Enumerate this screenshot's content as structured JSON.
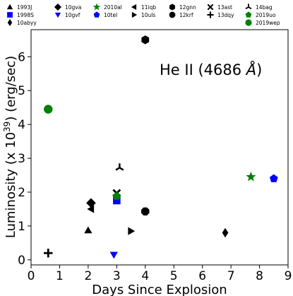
{
  "chart_data": {
    "type": "scatter",
    "xlabel": "Days Since Explosion",
    "ylabel_parts": [
      "Luminosity (x 10",
      "39",
      ") (erg/sec)"
    ],
    "annotation_parts": [
      "He II (4686 ",
      "Å",
      ")"
    ],
    "xlim": [
      0,
      9
    ],
    "ylim": [
      -0.15,
      6.8
    ],
    "xticks": [
      "0",
      "1",
      "2",
      "3",
      "4",
      "5",
      "6",
      "7",
      "8",
      "9"
    ],
    "yticks": [
      "0",
      "1",
      "2",
      "3",
      "4",
      "5",
      "6"
    ],
    "series": [
      {
        "name": "1993J",
        "marker": "triangle-up",
        "color": "#000000",
        "points": [
          [
            2.0,
            0.87
          ]
        ]
      },
      {
        "name": "1998S",
        "marker": "square",
        "color": "#0000ff",
        "points": [
          [
            3.0,
            1.75
          ]
        ]
      },
      {
        "name": "10abyy",
        "marker": "thin-diamond",
        "color": "#000000",
        "points": [
          [
            6.8,
            0.8
          ]
        ]
      },
      {
        "name": "10gva",
        "marker": "diamond",
        "color": "#000000",
        "points": [
          [
            2.1,
            1.68
          ]
        ]
      },
      {
        "name": "10gvf",
        "marker": "triangle-down",
        "color": "#0000ff",
        "points": [
          [
            2.9,
            0.15
          ]
        ]
      },
      {
        "name": "10tel",
        "marker": "pentagon",
        "color": "#0000ff",
        "points": [
          [
            8.5,
            2.4
          ]
        ]
      },
      {
        "name": "2010al",
        "marker": "star",
        "color": "#008000",
        "points": [
          [
            7.7,
            2.45
          ]
        ]
      },
      {
        "name": "10uls",
        "marker": "triangle-right",
        "color": "#000000",
        "points": [
          [
            3.5,
            0.85
          ]
        ]
      },
      {
        "name": "11iqb",
        "marker": "triangle-left",
        "color": "#000000",
        "points": [
          [
            2.1,
            1.5
          ]
        ]
      },
      {
        "name": "12gnn",
        "marker": "hexagon",
        "color": "#000000",
        "points": [
          [
            4.0,
            6.5
          ]
        ]
      },
      {
        "name": "12krf",
        "marker": "octagon",
        "color": "#000000",
        "points": [
          [
            4.0,
            1.43
          ]
        ]
      },
      {
        "name": "13ast",
        "marker": "x",
        "color": "#000000",
        "points": [
          [
            3.0,
            1.97
          ]
        ]
      },
      {
        "name": "13dqy",
        "marker": "plus",
        "color": "#000000",
        "points": [
          [
            0.6,
            0.2
          ]
        ]
      },
      {
        "name": "14bag",
        "marker": "tri-down",
        "color": "#000000",
        "points": [
          [
            3.1,
            2.72
          ]
        ]
      },
      {
        "name": "2019uo",
        "marker": "pentagon",
        "color": "#008000",
        "points": [
          [
            3.0,
            1.88
          ]
        ]
      },
      {
        "name": "2019wep",
        "marker": "circle",
        "color": "#008000",
        "points": [
          [
            0.6,
            4.45
          ]
        ]
      }
    ],
    "legend": {
      "placement": "top",
      "columns": [
        [
          "1993J",
          "1998S",
          "10abyy"
        ],
        [
          "10gva",
          "10gvf"
        ],
        [
          "2010al",
          "10tel"
        ],
        [
          "11iqb",
          "10uls"
        ],
        [
          "12gnn",
          "12krf"
        ],
        [
          "13ast",
          "13dqy"
        ],
        [
          "14bag",
          "2019uo",
          "2019wep"
        ]
      ]
    }
  }
}
